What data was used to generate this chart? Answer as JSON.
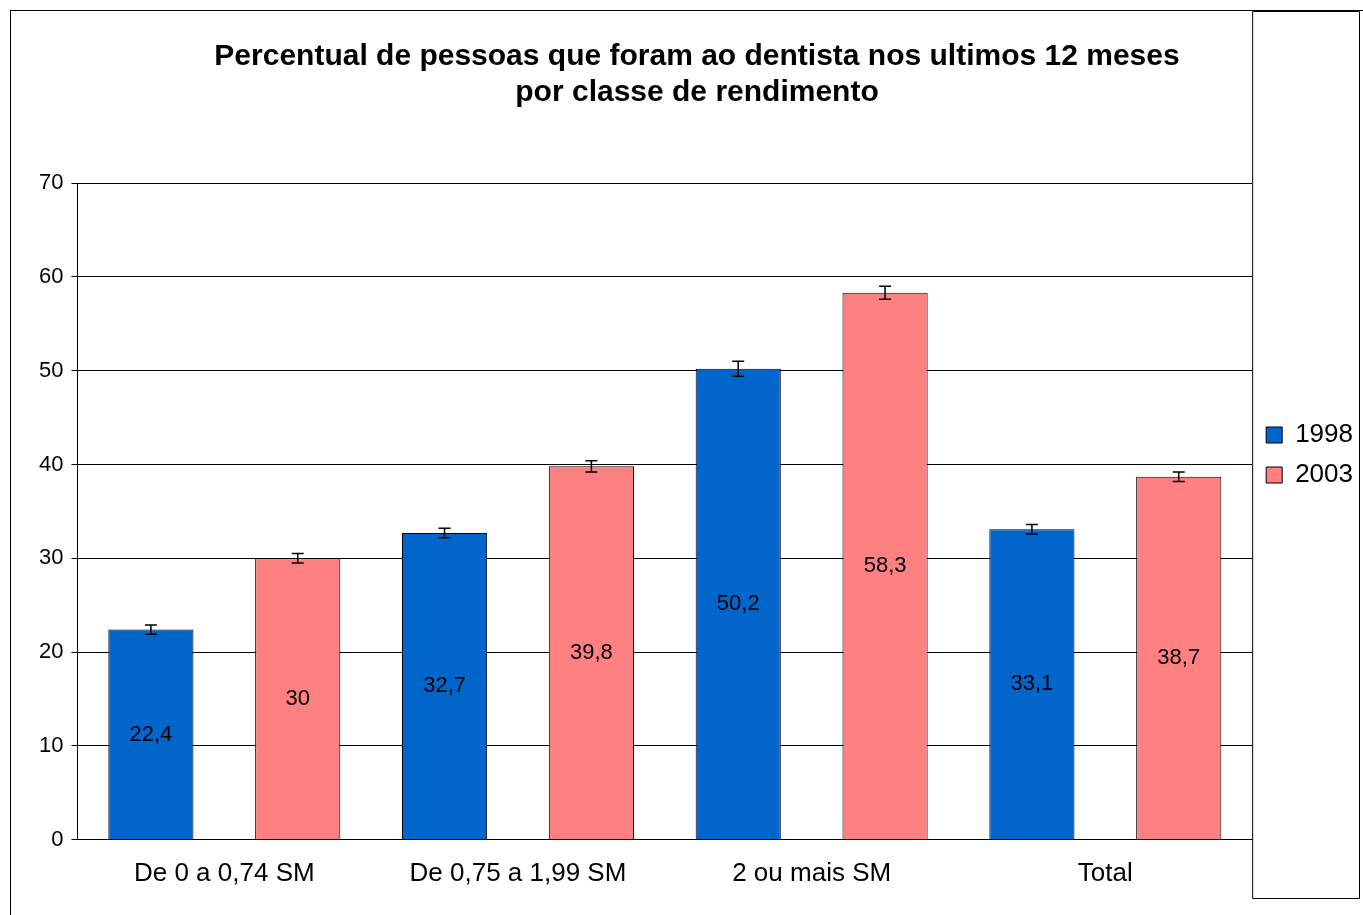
{
  "chart_data": {
    "type": "bar",
    "title": "Percentual de pessoas que foram ao dentista nos ultimos 12 meses\npor classe de rendimento",
    "categories": [
      "De 0 a 0,74 SM",
      "De 0,75 a 1,99 SM",
      "2 ou mais SM",
      "Total"
    ],
    "series": [
      {
        "name": "1998",
        "color": "#0066cc",
        "values": [
          22.4,
          32.7,
          50.2,
          33.1
        ],
        "errors": [
          0.5,
          0.5,
          0.8,
          0.5
        ],
        "value_labels": [
          "22,4",
          "32,7",
          "50,2",
          "33,1"
        ]
      },
      {
        "name": "2003",
        "color": "#ff8080",
        "values": [
          30,
          39.8,
          58.3,
          38.7
        ],
        "errors": [
          0.5,
          0.6,
          0.7,
          0.5
        ],
        "value_labels": [
          "30",
          "39,8",
          "58,3",
          "38,7"
        ]
      }
    ],
    "ylim": [
      0,
      70
    ],
    "yticks": [
      0,
      10,
      20,
      30,
      40,
      50,
      60,
      70
    ],
    "grid": "y",
    "legend": "right"
  }
}
